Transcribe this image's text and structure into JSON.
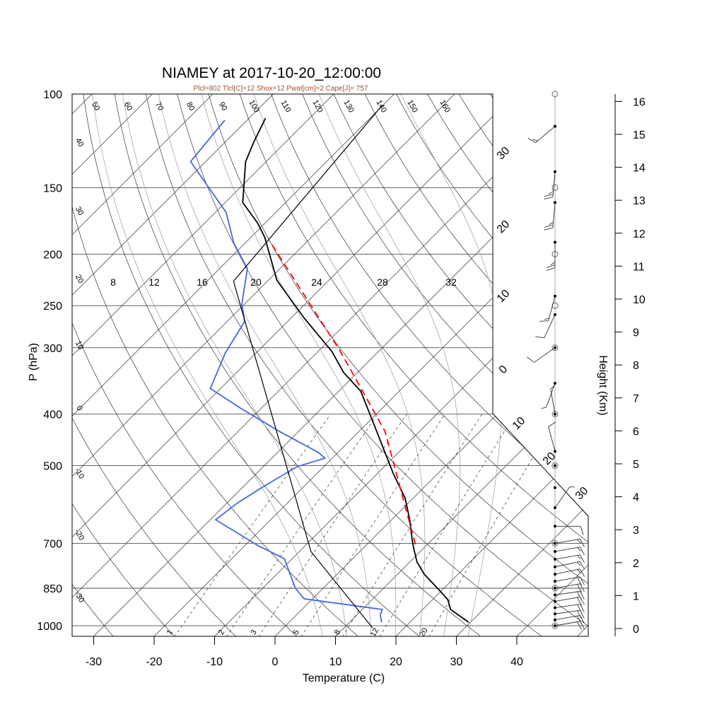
{
  "chart_data": {
    "type": "line",
    "subtype": "skew-t log-p",
    "title": "NIAMEY at 2017-10-20_12:00:00",
    "subtitle": "Plcl=802 Tlcl[C]=12 Shox=12 Pwat[cm]=2 Cape[J]= 757",
    "xlabel": "Temperature (C)",
    "ylabel": "P (hPa)",
    "y2label": "Height (Km)",
    "xlim": [
      -35,
      50
    ],
    "ylim": [
      1050,
      100
    ],
    "x_ticks": [
      "-30",
      "-20",
      "-10",
      "0",
      "10",
      "20",
      "30",
      "40"
    ],
    "pressure_ticks": [
      "100",
      "150",
      "200",
      "250",
      "300",
      "400",
      "500",
      "700",
      "850",
      "1000"
    ],
    "height_ticks": [
      "0",
      "1",
      "2",
      "3",
      "4",
      "5",
      "6",
      "7",
      "8",
      "9",
      "10",
      "11",
      "12",
      "13",
      "14",
      "15",
      "16"
    ],
    "dry_adiabat_labels_top": [
      "50",
      "60",
      "70",
      "80",
      "90",
      "100",
      "110",
      "120",
      "130",
      "140",
      "150",
      "160"
    ],
    "dry_adiabat_labels_left": [
      "40",
      "30",
      "20",
      "10",
      "0",
      "-10",
      "-20",
      "-30"
    ],
    "moist_adiabat_labels": [
      "8",
      "12",
      "16",
      "20",
      "24",
      "28",
      "32"
    ],
    "mixing_ratio_labels": [
      "1",
      "2",
      "3",
      "5",
      "8",
      "12",
      "20"
    ],
    "isotherm_labels_right": [
      "30",
      "20",
      "10",
      "0"
    ],
    "isotherm_labels_diagonal": [
      "10",
      "20",
      "30"
    ],
    "series": [
      {
        "name": "temperature",
        "color": "#000000",
        "points": [
          [
            985,
            29.7
          ],
          [
            932,
            24.6
          ],
          [
            893,
            22.5
          ],
          [
            858,
            19.6
          ],
          [
            800,
            14.4
          ],
          [
            759,
            11.2
          ],
          [
            714,
            8.3
          ],
          [
            686,
            6.5
          ],
          [
            632,
            3.0
          ],
          [
            576,
            -1.3
          ],
          [
            518,
            -7.3
          ],
          [
            469,
            -12.6
          ],
          [
            405,
            -20.4
          ],
          [
            362,
            -26.4
          ],
          [
            334,
            -32.3
          ],
          [
            305,
            -37.7
          ],
          [
            264,
            -47.8
          ],
          [
            224,
            -58.6
          ],
          [
            186,
            -67.7
          ],
          [
            175,
            -71.2
          ],
          [
            160,
            -77.1
          ],
          [
            134,
            -83.4
          ],
          [
            123,
            -85.3
          ],
          [
            111,
            -87.3
          ]
        ]
      },
      {
        "name": "dewpoint",
        "color": "#4169e1",
        "points": [
          [
            985,
            15.3
          ],
          [
            955,
            13.9
          ],
          [
            932,
            13.3
          ],
          [
            890,
            -1.4
          ],
          [
            850,
            -4.6
          ],
          [
            748,
            -11.3
          ],
          [
            707,
            -17.8
          ],
          [
            632,
            -29.1
          ],
          [
            589,
            -28.3
          ],
          [
            550,
            -26.8
          ],
          [
            502,
            -24.4
          ],
          [
            484,
            -21.2
          ],
          [
            472,
            -23.3
          ],
          [
            431,
            -33.2
          ],
          [
            390,
            -43.4
          ],
          [
            358,
            -51.7
          ],
          [
            307,
            -55.1
          ],
          [
            281,
            -56.4
          ],
          [
            268,
            -57.1
          ],
          [
            248,
            -60.5
          ],
          [
            213,
            -65.4
          ],
          [
            191,
            -71.8
          ],
          [
            167,
            -78.2
          ],
          [
            134,
            -92.5
          ],
          [
            112,
            -93.7
          ]
        ]
      },
      {
        "name": "parcel",
        "color": "#ff0000",
        "dashed": true,
        "points": [
          [
            703,
            8.0
          ],
          [
            431,
            -15.7
          ],
          [
            303,
            -36.7
          ],
          [
            189,
            -66.3
          ]
        ]
      },
      {
        "name": "reference",
        "color": "#000000",
        "points": [
          [
            1009,
            14.7
          ],
          [
            725,
            -8.1
          ],
          [
            225,
            -65.6
          ],
          [
            105,
            -70.1
          ]
        ]
      }
    ],
    "wind_barbs": [
      {
        "p": 1000,
        "dir": 80,
        "spd": 20
      },
      {
        "p": 975,
        "dir": 80,
        "spd": 20
      },
      {
        "p": 950,
        "dir": 82,
        "spd": 20
      },
      {
        "p": 925,
        "dir": 82,
        "spd": 20
      },
      {
        "p": 900,
        "dir": 80,
        "spd": 20
      },
      {
        "p": 875,
        "dir": 82,
        "spd": 20
      },
      {
        "p": 850,
        "dir": 80,
        "spd": 20
      },
      {
        "p": 825,
        "dir": 80,
        "spd": 20
      },
      {
        "p": 800,
        "dir": 78,
        "spd": 15
      },
      {
        "p": 775,
        "dir": 78,
        "spd": 15
      },
      {
        "p": 750,
        "dir": 80,
        "spd": 15
      },
      {
        "p": 725,
        "dir": 80,
        "spd": 15
      },
      {
        "p": 700,
        "dir": 80,
        "spd": 15
      },
      {
        "p": 650,
        "dir": 90,
        "spd": 10
      },
      {
        "p": 600,
        "dir": 35,
        "spd": 5
      },
      {
        "p": 550,
        "dir": 10,
        "spd": 0
      },
      {
        "p": 500,
        "dir": 350,
        "spd": 0
      },
      {
        "p": 470,
        "dir": 345,
        "spd": 10
      },
      {
        "p": 400,
        "dir": 350,
        "spd": 5
      },
      {
        "p": 350,
        "dir": 200,
        "spd": 5
      },
      {
        "p": 300,
        "dir": 235,
        "spd": 10
      },
      {
        "p": 260,
        "dir": 205,
        "spd": 10
      },
      {
        "p": 240,
        "dir": 195,
        "spd": 15
      },
      {
        "p": 190,
        "dir": 180,
        "spd": 25
      },
      {
        "p": 160,
        "dir": 185,
        "spd": 25
      },
      {
        "p": 140,
        "dir": 185,
        "spd": 25
      },
      {
        "p": 115,
        "dir": 230,
        "spd": 15
      }
    ],
    "mandatory_levels": [
      1000,
      850,
      700,
      500,
      400,
      300,
      250,
      200,
      150,
      100
    ],
    "grid": true
  }
}
